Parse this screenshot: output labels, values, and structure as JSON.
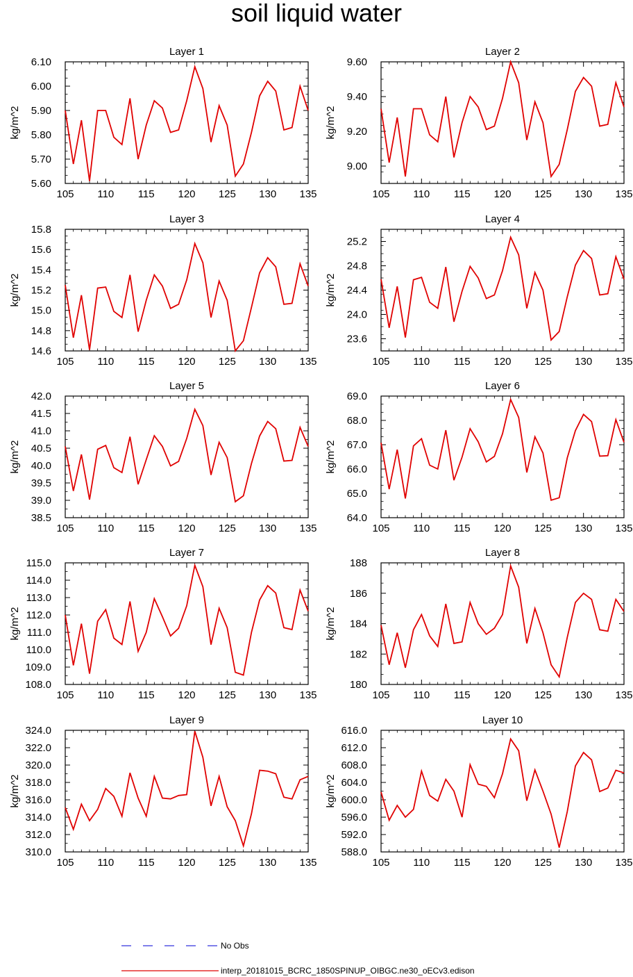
{
  "title": "soil liquid water",
  "legend": {
    "obs_label": "No Obs",
    "model_label": "interp_20181015_BCRC_1850SPINUP_OIBGC.ne30_oECv3.edison",
    "obs_color": "#3333dd",
    "model_color": "#e00000"
  },
  "chart_data": [
    {
      "type": "line",
      "title": "Layer 1",
      "ylabel": "kg/m^2",
      "xlim": [
        105,
        135
      ],
      "xticks": [
        105,
        110,
        115,
        120,
        125,
        130,
        135
      ],
      "ylim": [
        5.6,
        6.1
      ],
      "yticks": [
        "5.60",
        "5.70",
        "5.80",
        "5.90",
        "6.00",
        "6.10"
      ],
      "minor_per_major": 2,
      "x": [
        105,
        106,
        107,
        108,
        109,
        110,
        111,
        112,
        113,
        114,
        115,
        116,
        117,
        118,
        119,
        120,
        121,
        122,
        123,
        124,
        125,
        126,
        127,
        128,
        129,
        130,
        131,
        132,
        133,
        134,
        135
      ],
      "values": [
        5.9,
        5.68,
        5.86,
        5.61,
        5.9,
        5.9,
        5.79,
        5.76,
        5.95,
        5.7,
        5.84,
        5.94,
        5.91,
        5.81,
        5.82,
        5.94,
        6.08,
        5.99,
        5.77,
        5.92,
        5.84,
        5.63,
        5.68,
        5.81,
        5.96,
        6.02,
        5.98,
        5.82,
        5.83,
        6.0,
        5.9
      ]
    },
    {
      "type": "line",
      "title": "Layer 2",
      "ylabel": "kg/m^2",
      "xlim": [
        105,
        135
      ],
      "xticks": [
        105,
        110,
        115,
        120,
        125,
        130,
        135
      ],
      "ylim": [
        8.9,
        9.6
      ],
      "yticks": [
        "9.00",
        "9.20",
        "9.40",
        "9.60"
      ],
      "minor_per_major": 2,
      "x": [
        105,
        106,
        107,
        108,
        109,
        110,
        111,
        112,
        113,
        114,
        115,
        116,
        117,
        118,
        119,
        120,
        121,
        122,
        123,
        124,
        125,
        126,
        127,
        128,
        129,
        130,
        131,
        132,
        133,
        134,
        135
      ],
      "values": [
        9.33,
        9.02,
        9.28,
        8.94,
        9.33,
        9.33,
        9.18,
        9.14,
        9.4,
        9.05,
        9.25,
        9.4,
        9.34,
        9.21,
        9.23,
        9.39,
        9.6,
        9.48,
        9.15,
        9.37,
        9.25,
        8.94,
        9.01,
        9.21,
        9.43,
        9.51,
        9.46,
        9.23,
        9.24,
        9.48,
        9.34
      ]
    },
    {
      "type": "line",
      "title": "Layer 3",
      "ylabel": "kg/m^2",
      "xlim": [
        105,
        135
      ],
      "xticks": [
        105,
        110,
        115,
        120,
        125,
        130,
        135
      ],
      "ylim": [
        14.6,
        15.8
      ],
      "yticks": [
        "14.6",
        "14.8",
        "15.0",
        "15.2",
        "15.4",
        "15.6",
        "15.8"
      ],
      "minor_per_major": 2,
      "x": [
        105,
        106,
        107,
        108,
        109,
        110,
        111,
        112,
        113,
        114,
        115,
        116,
        117,
        118,
        119,
        120,
        121,
        122,
        123,
        124,
        125,
        126,
        127,
        128,
        129,
        130,
        131,
        132,
        133,
        134,
        135
      ],
      "values": [
        15.25,
        14.73,
        15.15,
        14.61,
        15.22,
        15.23,
        14.99,
        14.93,
        15.35,
        14.79,
        15.1,
        15.35,
        15.24,
        15.02,
        15.06,
        15.3,
        15.66,
        15.47,
        14.93,
        15.29,
        15.1,
        14.6,
        14.7,
        15.03,
        15.37,
        15.52,
        15.43,
        15.06,
        15.07,
        15.46,
        15.24
      ]
    },
    {
      "type": "line",
      "title": "Layer 4",
      "ylabel": "kg/m^2",
      "xlim": [
        105,
        135
      ],
      "xticks": [
        105,
        110,
        115,
        120,
        125,
        130,
        135
      ],
      "ylim": [
        23.4,
        25.4
      ],
      "yticks": [
        "23.6",
        "24.0",
        "24.4",
        "24.8",
        "25.2"
      ],
      "minor_per_major": 2,
      "x": [
        105,
        106,
        107,
        108,
        109,
        110,
        111,
        112,
        113,
        114,
        115,
        116,
        117,
        118,
        119,
        120,
        121,
        122,
        123,
        124,
        125,
        126,
        127,
        128,
        129,
        130,
        131,
        132,
        133,
        134,
        135
      ],
      "values": [
        24.58,
        23.78,
        24.46,
        23.62,
        24.57,
        24.61,
        24.2,
        24.1,
        24.78,
        23.88,
        24.38,
        24.79,
        24.6,
        24.26,
        24.32,
        24.72,
        25.27,
        24.98,
        24.1,
        24.69,
        24.4,
        23.58,
        23.72,
        24.29,
        24.81,
        25.05,
        24.92,
        24.32,
        24.34,
        24.95,
        24.58
      ]
    },
    {
      "type": "line",
      "title": "Layer 5",
      "ylabel": "kg/m^2",
      "xlim": [
        105,
        135
      ],
      "xticks": [
        105,
        110,
        115,
        120,
        125,
        130,
        135
      ],
      "ylim": [
        38.5,
        42.0
      ],
      "yticks": [
        "38.5",
        "39.0",
        "39.5",
        "40.0",
        "40.5",
        "41.0",
        "41.5",
        "42.0"
      ],
      "minor_per_major": 1,
      "x": [
        105,
        106,
        107,
        108,
        109,
        110,
        111,
        112,
        113,
        114,
        115,
        116,
        117,
        118,
        119,
        120,
        121,
        122,
        123,
        124,
        125,
        126,
        127,
        128,
        129,
        130,
        131,
        132,
        133,
        134,
        135
      ],
      "values": [
        40.55,
        39.27,
        40.32,
        39.02,
        40.47,
        40.58,
        39.94,
        39.8,
        40.83,
        39.46,
        40.17,
        40.86,
        40.55,
        39.99,
        40.12,
        40.78,
        41.62,
        41.15,
        39.73,
        40.67,
        40.23,
        38.96,
        39.13,
        40.06,
        40.85,
        41.27,
        41.06,
        40.13,
        40.15,
        41.1,
        40.55
      ]
    },
    {
      "type": "line",
      "title": "Layer 6",
      "ylabel": "kg/m^2",
      "xlim": [
        105,
        135
      ],
      "xticks": [
        105,
        110,
        115,
        120,
        125,
        130,
        135
      ],
      "ylim": [
        64.0,
        69.0
      ],
      "yticks": [
        "64.0",
        "65.0",
        "66.0",
        "67.0",
        "68.0",
        "69.0"
      ],
      "minor_per_major": 2,
      "x": [
        105,
        106,
        107,
        108,
        109,
        110,
        111,
        112,
        113,
        114,
        115,
        116,
        117,
        118,
        119,
        120,
        121,
        122,
        123,
        124,
        125,
        126,
        127,
        128,
        129,
        130,
        131,
        132,
        133,
        134,
        135
      ],
      "values": [
        67.08,
        65.17,
        66.8,
        64.79,
        66.95,
        67.25,
        66.16,
        66.0,
        67.6,
        65.54,
        66.49,
        67.66,
        67.12,
        66.29,
        66.52,
        67.45,
        68.86,
        68.12,
        65.86,
        67.33,
        66.66,
        64.72,
        64.82,
        66.46,
        67.58,
        68.25,
        67.95,
        66.53,
        66.55,
        68.03,
        67.1
      ]
    },
    {
      "type": "line",
      "title": "Layer 7",
      "ylabel": "kg/m^2",
      "xlim": [
        105,
        135
      ],
      "xticks": [
        105,
        110,
        115,
        120,
        125,
        130,
        135
      ],
      "ylim": [
        108.0,
        115.0
      ],
      "yticks": [
        "108.0",
        "109.0",
        "110.0",
        "111.0",
        "112.0",
        "113.0",
        "114.0",
        "115.0"
      ],
      "minor_per_major": 1,
      "x": [
        105,
        106,
        107,
        108,
        109,
        110,
        111,
        112,
        113,
        114,
        115,
        116,
        117,
        118,
        119,
        120,
        121,
        122,
        123,
        124,
        125,
        126,
        127,
        128,
        129,
        130,
        131,
        132,
        133,
        134,
        135
      ],
      "values": [
        112.0,
        109.1,
        111.5,
        108.62,
        111.64,
        112.31,
        110.67,
        110.3,
        112.78,
        109.91,
        111.0,
        112.94,
        111.9,
        110.79,
        111.23,
        112.53,
        114.86,
        113.63,
        110.29,
        112.39,
        111.27,
        108.7,
        108.54,
        111.0,
        112.86,
        113.69,
        113.26,
        111.27,
        111.16,
        113.43,
        112.22
      ]
    },
    {
      "type": "line",
      "title": "Layer 8",
      "ylabel": "kg/m^2",
      "xlim": [
        105,
        135
      ],
      "xticks": [
        105,
        110,
        115,
        120,
        125,
        130,
        135
      ],
      "ylim": [
        180,
        188
      ],
      "yticks": [
        "180",
        "182",
        "184",
        "186",
        "188"
      ],
      "minor_per_major": 2,
      "x": [
        105,
        106,
        107,
        108,
        109,
        110,
        111,
        112,
        113,
        114,
        115,
        116,
        117,
        118,
        119,
        120,
        121,
        122,
        123,
        124,
        125,
        126,
        127,
        128,
        129,
        130,
        131,
        132,
        133,
        134,
        135
      ],
      "values": [
        183.9,
        181.3,
        183.4,
        181.1,
        183.6,
        184.6,
        183.2,
        182.5,
        185.3,
        182.7,
        182.8,
        185.4,
        184.0,
        183.3,
        183.7,
        184.6,
        187.8,
        186.4,
        182.7,
        185.0,
        183.4,
        181.3,
        180.5,
        183.1,
        185.4,
        186.0,
        185.6,
        183.6,
        183.5,
        185.6,
        184.8
      ]
    },
    {
      "type": "line",
      "title": "Layer 9",
      "ylabel": "kg/m^2",
      "xlim": [
        105,
        135
      ],
      "xticks": [
        105,
        110,
        115,
        120,
        125,
        130,
        135
      ],
      "ylim": [
        310.0,
        324.0
      ],
      "yticks": [
        "310.0",
        "312.0",
        "314.0",
        "316.0",
        "318.0",
        "320.0",
        "322.0",
        "324.0"
      ],
      "minor_per_major": 1,
      "x": [
        105,
        106,
        107,
        108,
        109,
        110,
        111,
        112,
        113,
        114,
        115,
        116,
        117,
        118,
        119,
        120,
        121,
        122,
        123,
        124,
        125,
        126,
        127,
        128,
        129,
        130,
        131,
        132,
        133,
        134,
        135
      ],
      "values": [
        315.1,
        312.6,
        315.5,
        313.6,
        314.9,
        317.3,
        316.4,
        314.1,
        319.1,
        316.2,
        314.1,
        318.7,
        316.2,
        316.1,
        316.5,
        316.6,
        323.9,
        320.9,
        315.3,
        318.7,
        315.2,
        313.6,
        310.7,
        314.4,
        319.4,
        319.3,
        319.0,
        316.3,
        316.1,
        318.3,
        318.7
      ]
    },
    {
      "type": "line",
      "title": "Layer 10",
      "ylabel": "kg/m^2",
      "xlim": [
        105,
        135
      ],
      "xticks": [
        105,
        110,
        115,
        120,
        125,
        130,
        135
      ],
      "ylim": [
        588.0,
        616.0
      ],
      "yticks": [
        "588.0",
        "592.0",
        "596.0",
        "600.0",
        "604.0",
        "608.0",
        "612.0",
        "616.0"
      ],
      "minor_per_major": 1,
      "x": [
        105,
        106,
        107,
        108,
        109,
        110,
        111,
        112,
        113,
        114,
        115,
        116,
        117,
        118,
        119,
        120,
        121,
        122,
        123,
        124,
        125,
        126,
        127,
        128,
        129,
        130,
        131,
        132,
        133,
        134,
        135
      ],
      "values": [
        601.8,
        595.3,
        598.7,
        596.0,
        597.8,
        606.6,
        601.0,
        599.7,
        604.7,
        602.0,
        596.0,
        608.1,
        603.6,
        603.1,
        600.5,
        606.0,
        614.0,
        611.3,
        599.8,
        606.9,
        602.0,
        596.7,
        589.0,
        597.3,
        607.8,
        610.9,
        609.2,
        601.9,
        602.7,
        606.8,
        606.2
      ]
    }
  ]
}
